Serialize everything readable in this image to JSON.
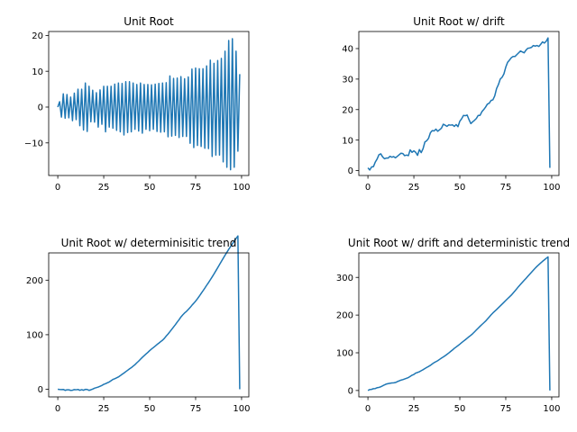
{
  "colors": {
    "line": "#1f77b4",
    "axes": "#000000",
    "background": "#ffffff"
  },
  "chart_data": [
    {
      "type": "line",
      "title": "Unit Root",
      "xlabel": "",
      "ylabel": "",
      "xlim": [
        -4.95,
        103.95
      ],
      "ylim": [
        -19.1,
        21.1
      ],
      "xticks": [
        0,
        25,
        50,
        75,
        100
      ],
      "yticks": [
        -10,
        0,
        10,
        20
      ],
      "grid": false,
      "series": [
        {
          "x": [
            0,
            1,
            2,
            3,
            4,
            5,
            6,
            7,
            8,
            9,
            10,
            11,
            12,
            13,
            14,
            15,
            16,
            17,
            18,
            19,
            20,
            21,
            22,
            23,
            24,
            25,
            26,
            27,
            28,
            29,
            30,
            31,
            32,
            33,
            34,
            35,
            36,
            37,
            38,
            39,
            40,
            41,
            42,
            43,
            44,
            45,
            46,
            47,
            48,
            49,
            50,
            51,
            52,
            53,
            54,
            55,
            56,
            57,
            58,
            59,
            60,
            61,
            62,
            63,
            64,
            65,
            66,
            67,
            68,
            69,
            70,
            71,
            72,
            73,
            74,
            75,
            76,
            77,
            78,
            79,
            80,
            81,
            82,
            83,
            84,
            85,
            86,
            87,
            88,
            89,
            90,
            91,
            92,
            93,
            94,
            95,
            96,
            97,
            98,
            99
          ],
          "y": [
            0.0,
            1.5,
            -2.8,
            3.7,
            -3.1,
            3.5,
            -3.0,
            2.8,
            -3.8,
            3.9,
            -3.5,
            5.0,
            -5.2,
            5.0,
            -6.4,
            6.7,
            -6.8,
            5.8,
            -4.1,
            4.7,
            -4.2,
            4.0,
            -5.6,
            4.8,
            -4.8,
            5.8,
            -6.9,
            5.8,
            -5.6,
            5.8,
            -5.9,
            6.4,
            -6.5,
            6.7,
            -6.9,
            6.6,
            -7.8,
            7.1,
            -7.1,
            7.1,
            -6.9,
            6.7,
            -6.2,
            6.3,
            -6.7,
            6.7,
            -7.3,
            6.3,
            -6.2,
            6.3,
            -6.6,
            6.2,
            -6.2,
            6.4,
            -6.8,
            6.6,
            -7.0,
            6.7,
            -6.9,
            6.8,
            -8.3,
            8.7,
            -8.1,
            8.0,
            -7.9,
            8.1,
            -8.5,
            8.5,
            -8.2,
            7.9,
            -8.2,
            8.4,
            -10.1,
            10.6,
            -11.3,
            10.9,
            -10.7,
            10.7,
            -11.0,
            10.7,
            -11.5,
            11.5,
            -11.6,
            13.1,
            -13.8,
            12.2,
            -13.4,
            13.0,
            -13.4,
            13.6,
            -15.3,
            15.6,
            -16.8,
            18.6,
            -17.5,
            19.1,
            -16.8,
            15.6,
            -12.3,
            9.2
          ]
        }
      ]
    },
    {
      "type": "line",
      "title": "Unit Root w/ drift",
      "xlabel": "",
      "ylabel": "",
      "xlim": [
        -4.95,
        103.95
      ],
      "ylim": [
        -1.6,
        45.6
      ],
      "xticks": [
        0,
        25,
        50,
        75,
        100
      ],
      "yticks": [
        0,
        10,
        20,
        30,
        40
      ],
      "grid": false,
      "series": [
        {
          "x": [
            0,
            1,
            2,
            3,
            4,
            5,
            6,
            7,
            8,
            9,
            10,
            11,
            12,
            13,
            14,
            15,
            16,
            17,
            18,
            19,
            20,
            21,
            22,
            23,
            24,
            25,
            26,
            27,
            28,
            29,
            30,
            31,
            32,
            33,
            34,
            35,
            36,
            37,
            38,
            39,
            40,
            41,
            42,
            43,
            44,
            45,
            46,
            47,
            48,
            49,
            50,
            51,
            52,
            53,
            54,
            55,
            56,
            57,
            58,
            59,
            60,
            61,
            62,
            63,
            64,
            65,
            66,
            67,
            68,
            69,
            70,
            71,
            72,
            73,
            74,
            75,
            76,
            77,
            78,
            79,
            80,
            81,
            82,
            83,
            84,
            85,
            86,
            87,
            88,
            89,
            90,
            91,
            92,
            93,
            94,
            95,
            96,
            97,
            98,
            99
          ],
          "y": [
            0.9,
            0.2,
            1.2,
            1.3,
            2.8,
            3.8,
            5.2,
            5.5,
            4.5,
            3.9,
            4.1,
            4.1,
            4.7,
            4.4,
            4.6,
            4.2,
            4.7,
            5.2,
            5.7,
            5.6,
            4.9,
            5.1,
            4.9,
            6.8,
            6.0,
            6.5,
            6.0,
            5.0,
            6.9,
            5.9,
            7.2,
            9.4,
            9.8,
            10.6,
            12.4,
            13.1,
            13.0,
            13.6,
            12.9,
            13.4,
            13.9,
            15.2,
            14.9,
            14.5,
            15.0,
            14.9,
            15.0,
            14.5,
            15.1,
            14.4,
            16.2,
            17.0,
            18.1,
            18.0,
            18.2,
            16.7,
            15.4,
            16.0,
            16.5,
            17.1,
            18.1,
            18.1,
            19.3,
            20.0,
            20.8,
            21.8,
            22.1,
            23.0,
            23.2,
            24.5,
            26.9,
            28.2,
            30.0,
            30.6,
            31.7,
            33.9,
            35.5,
            36.2,
            37.0,
            37.4,
            37.4,
            38.0,
            38.6,
            39.2,
            38.9,
            38.6,
            39.5,
            40.1,
            40.2,
            40.4,
            41.0,
            40.8,
            41.0,
            40.7,
            41.4,
            42.2,
            41.8,
            42.4,
            43.5,
            0.9
          ]
        }
      ]
    },
    {
      "type": "line",
      "title": "Unit Root w/ determinisitic trend",
      "xlabel": "",
      "ylabel": "",
      "xlim": [
        -4.95,
        103.95
      ],
      "ylim": [
        -14,
        250
      ],
      "xticks": [
        0,
        25,
        50,
        75,
        100
      ],
      "yticks": [
        0,
        100,
        200
      ],
      "grid": false,
      "series": [
        {
          "x": [
            0,
            1,
            2,
            3,
            4,
            5,
            6,
            7,
            8,
            9,
            10,
            11,
            12,
            13,
            14,
            15,
            16,
            17,
            18,
            19,
            20,
            21,
            22,
            23,
            24,
            25,
            26,
            27,
            28,
            29,
            30,
            31,
            32,
            33,
            34,
            35,
            36,
            37,
            38,
            39,
            40,
            41,
            42,
            43,
            44,
            45,
            46,
            47,
            48,
            49,
            50,
            51,
            52,
            53,
            54,
            55,
            56,
            57,
            58,
            59,
            60,
            61,
            62,
            63,
            64,
            65,
            66,
            67,
            68,
            69,
            70,
            71,
            72,
            73,
            74,
            75,
            76,
            77,
            78,
            79,
            80,
            81,
            82,
            83,
            84,
            85,
            86,
            87,
            88,
            89,
            90,
            91,
            92,
            93,
            94,
            95,
            96,
            97,
            98,
            99
          ],
          "y": [
            0.0,
            -0.3,
            -0.5,
            -0.3,
            -2.0,
            -1.0,
            -1.0,
            -2.0,
            -1.8,
            -0.5,
            -0.9,
            -0.3,
            -1.9,
            -0.7,
            -1.8,
            -0.2,
            -0.4,
            -2.0,
            -1.0,
            0.4,
            2.0,
            3.0,
            4.1,
            5.5,
            7.0,
            9.0,
            10.2,
            11.9,
            13.4,
            15.7,
            18.0,
            19.3,
            20.9,
            22.6,
            24.9,
            27.4,
            29.7,
            32.3,
            34.8,
            37.3,
            39.6,
            42.4,
            45.1,
            48.5,
            51.6,
            55.1,
            58.5,
            61.5,
            64.6,
            67.6,
            70.9,
            73.8,
            76.4,
            79.2,
            82.1,
            84.6,
            87.4,
            90.0,
            93.4,
            97.6,
            101.3,
            105.5,
            109.8,
            114.2,
            118.5,
            123.3,
            127.6,
            132.5,
            136.4,
            139.9,
            142.7,
            146.2,
            149.9,
            154.0,
            157.7,
            161.6,
            165.9,
            170.6,
            175.6,
            180.5,
            185.4,
            190.6,
            195.5,
            200.7,
            206.0,
            211.5,
            217.1,
            222.8,
            228.5,
            234.4,
            240.0,
            245.6,
            251.1,
            256.5,
            261.6,
            266.6,
            271.5,
            276.4,
            281.1,
            0.0
          ]
        }
      ]
    },
    {
      "type": "line",
      "title": "Unit Root w/ drift and deterministic trend",
      "xlabel": "",
      "ylabel": "",
      "xlim": [
        -4.95,
        103.95
      ],
      "ylim": [
        -17,
        365
      ],
      "xticks": [
        0,
        25,
        50,
        75,
        100
      ],
      "yticks": [
        0,
        100,
        200,
        300
      ],
      "grid": false,
      "series": [
        {
          "x": [
            0,
            1,
            2,
            3,
            4,
            5,
            6,
            7,
            8,
            9,
            10,
            11,
            12,
            13,
            14,
            15,
            16,
            17,
            18,
            19,
            20,
            21,
            22,
            23,
            24,
            25,
            26,
            27,
            28,
            29,
            30,
            31,
            32,
            33,
            34,
            35,
            36,
            37,
            38,
            39,
            40,
            41,
            42,
            43,
            44,
            45,
            46,
            47,
            48,
            49,
            50,
            51,
            52,
            53,
            54,
            55,
            56,
            57,
            58,
            59,
            60,
            61,
            62,
            63,
            64,
            65,
            66,
            67,
            68,
            69,
            70,
            71,
            72,
            73,
            74,
            75,
            76,
            77,
            78,
            79,
            80,
            81,
            82,
            83,
            84,
            85,
            86,
            87,
            88,
            89,
            90,
            91,
            92,
            93,
            94,
            95,
            96,
            97,
            98,
            99
          ],
          "y": [
            0.0,
            2.5,
            3.0,
            4.8,
            5.1,
            7.4,
            8.2,
            9.8,
            12.4,
            14.9,
            17.1,
            18.3,
            19.2,
            20.0,
            20.3,
            21.1,
            23.6,
            25.5,
            27.5,
            28.8,
            30.5,
            32.3,
            34.2,
            37.3,
            40.5,
            42.6,
            46.2,
            47.8,
            49.7,
            52.5,
            55.1,
            58.3,
            61.2,
            63.8,
            66.7,
            70.5,
            73.9,
            76.4,
            79.1,
            82.5,
            85.9,
            88.9,
            92.3,
            95.9,
            99.6,
            103.6,
            107.4,
            111.7,
            115.4,
            119.0,
            122.9,
            126.9,
            130.9,
            134.6,
            138.6,
            142.7,
            146.4,
            150.7,
            155.5,
            160.5,
            165.4,
            170.2,
            174.9,
            179.4,
            183.9,
            189.5,
            195.0,
            200.6,
            205.7,
            210.3,
            214.8,
            219.5,
            224.2,
            229.0,
            233.8,
            238.8,
            243.6,
            248.2,
            252.9,
            258.5,
            264.1,
            270.0,
            275.9,
            281.4,
            286.8,
            292.1,
            297.3,
            302.8,
            308.2,
            313.7,
            319.1,
            324.3,
            329.3,
            333.8,
            338.3,
            342.6,
            346.5,
            350.6,
            354.5,
            0.0
          ]
        }
      ]
    }
  ]
}
